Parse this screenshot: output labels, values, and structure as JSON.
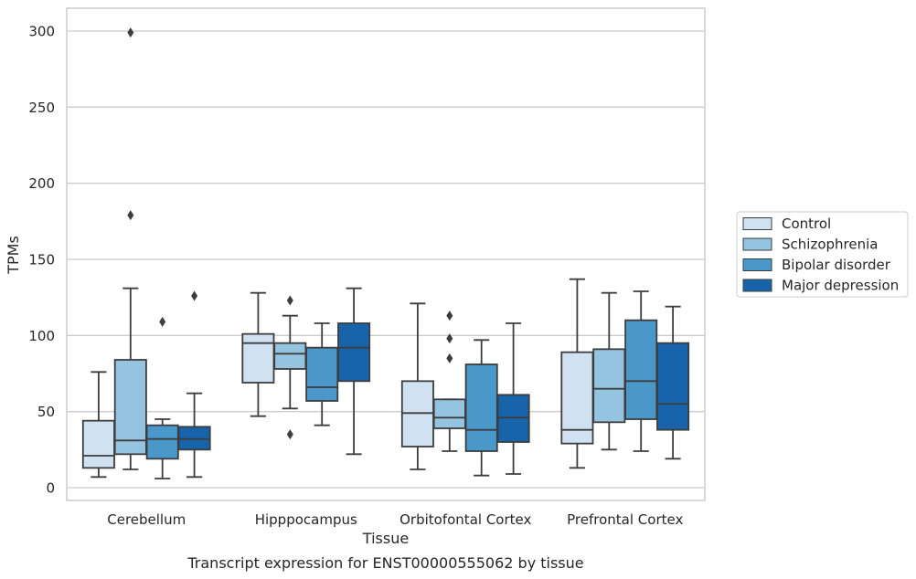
{
  "chart_data": {
    "type": "boxplot",
    "xlabel": "Tissue",
    "ylabel": "TPMs",
    "caption": "Transcript expression for ENST00000555062 by tissue",
    "ylim": [
      -8,
      315
    ],
    "yticks": [
      0,
      50,
      100,
      150,
      200,
      250,
      300
    ],
    "grid": true,
    "legend_position": "right",
    "categories": [
      "Cerebellum",
      "Hipppocampus",
      "Orbitofontal Cortex",
      "Prefrontal Cortex"
    ],
    "series": [
      {
        "name": "Control",
        "color": "#d0e1f2",
        "boxes": [
          {
            "whisker_low": 7,
            "q1": 13,
            "median": 21,
            "q3": 44,
            "whisker_high": 76,
            "outliers": []
          },
          {
            "whisker_low": 47,
            "q1": 69,
            "median": 95,
            "q3": 101,
            "whisker_high": 128,
            "outliers": []
          },
          {
            "whisker_low": 12,
            "q1": 27,
            "median": 49,
            "q3": 70,
            "whisker_high": 121,
            "outliers": []
          },
          {
            "whisker_low": 13,
            "q1": 29,
            "median": 38,
            "q3": 89,
            "whisker_high": 137,
            "outliers": []
          }
        ]
      },
      {
        "name": "Schizophrenia",
        "color": "#94c4df",
        "boxes": [
          {
            "whisker_low": 12,
            "q1": 22,
            "median": 31,
            "q3": 84,
            "whisker_high": 131,
            "outliers": [
              179,
              299
            ]
          },
          {
            "whisker_low": 52,
            "q1": 78,
            "median": 88,
            "q3": 95,
            "whisker_high": 113,
            "outliers": [
              35,
              123
            ]
          },
          {
            "whisker_low": 24,
            "q1": 39,
            "median": 46,
            "q3": 58,
            "whisker_high": 58,
            "outliers": [
              85,
              98,
              113
            ]
          },
          {
            "whisker_low": 25,
            "q1": 43,
            "median": 65,
            "q3": 91,
            "whisker_high": 128,
            "outliers": []
          }
        ]
      },
      {
        "name": "Bipolar disorder",
        "color": "#4a98c9",
        "boxes": [
          {
            "whisker_low": 6,
            "q1": 19,
            "median": 32,
            "q3": 41,
            "whisker_high": 45,
            "outliers": [
              109
            ]
          },
          {
            "whisker_low": 41,
            "q1": 57,
            "median": 66,
            "q3": 92,
            "whisker_high": 108,
            "outliers": []
          },
          {
            "whisker_low": 8,
            "q1": 24,
            "median": 38,
            "q3": 81,
            "whisker_high": 97,
            "outliers": []
          },
          {
            "whisker_low": 24,
            "q1": 45,
            "median": 70,
            "q3": 110,
            "whisker_high": 129,
            "outliers": []
          }
        ]
      },
      {
        "name": "Major depression",
        "color": "#1764ab",
        "boxes": [
          {
            "whisker_low": 7,
            "q1": 25,
            "median": 32,
            "q3": 40,
            "whisker_high": 62,
            "outliers": [
              126
            ]
          },
          {
            "whisker_low": 22,
            "q1": 70,
            "median": 92,
            "q3": 108,
            "whisker_high": 131,
            "outliers": []
          },
          {
            "whisker_low": 9,
            "q1": 30,
            "median": 46,
            "q3": 61,
            "whisker_high": 108,
            "outliers": []
          },
          {
            "whisker_low": 19,
            "q1": 38,
            "median": 55,
            "q3": 95,
            "whisker_high": 119,
            "outliers": []
          }
        ]
      }
    ]
  }
}
